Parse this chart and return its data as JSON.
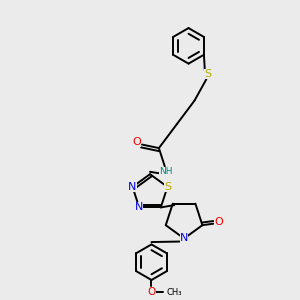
{
  "bg_color": "#ebebeb",
  "bond_color": "#000000",
  "atom_colors": {
    "N": "#0000ee",
    "O": "#ee0000",
    "S": "#bbaa00",
    "H": "#008877"
  },
  "lw": 1.4,
  "fs": 7.0
}
